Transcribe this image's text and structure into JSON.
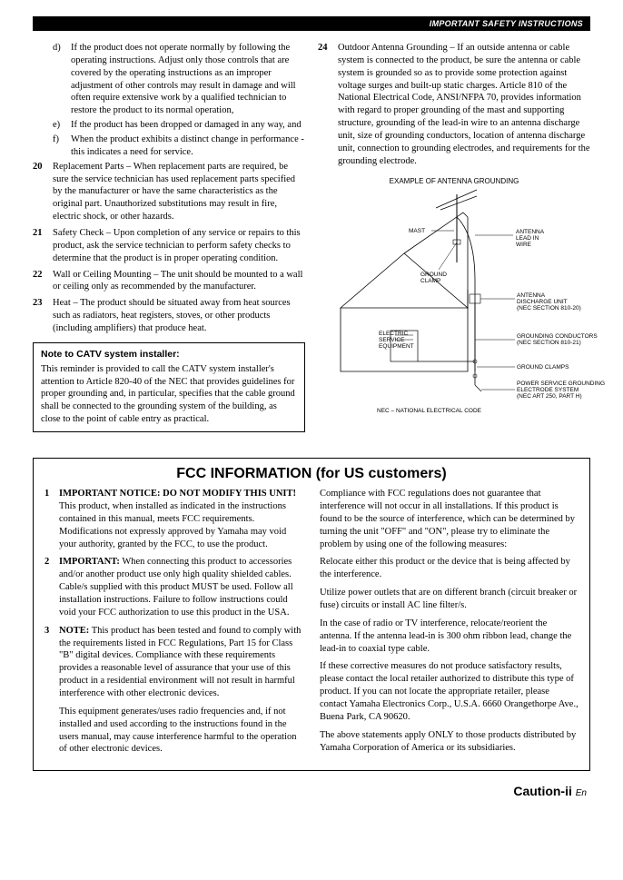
{
  "header": "IMPORTANT SAFETY INSTRUCTIONS",
  "left": {
    "subs": [
      {
        "l": "d)",
        "t": "If the product does not operate normally by following the operating instructions. Adjust only those controls that are covered by the operating instructions as an improper adjustment of other controls may result in damage and will often require extensive work by a qualified technician to restore the product to its normal operation,"
      },
      {
        "l": "e)",
        "t": "If the product has been dropped or damaged in any way, and"
      },
      {
        "l": "f)",
        "t": "When the product exhibits a distinct change in performance - this indicates a need for service."
      }
    ],
    "items": [
      {
        "n": "20",
        "t": "Replacement Parts – When replacement parts are required, be sure the service technician has used replacement parts specified by the manufacturer or have the same characteristics as the original part. Unauthorized substitutions may result in fire, electric shock, or other hazards."
      },
      {
        "n": "21",
        "t": "Safety Check – Upon completion of any service or repairs to this product, ask the service technician to perform safety checks to determine that the product is in proper operating condition."
      },
      {
        "n": "22",
        "t": "Wall or Ceiling Mounting – The unit should be mounted to a wall or ceiling only as recommended by the manufacturer."
      },
      {
        "n": "23",
        "t": "Heat – The product should be situated away from heat sources such as radiators, heat registers, stoves, or other products (including amplifiers) that produce heat."
      }
    ],
    "note": {
      "title": "Note to CATV system installer:",
      "body": "This reminder is provided to call the CATV system installer's attention to Article 820-40 of the NEC that provides guidelines for proper grounding and, in particular, specifies that the cable ground shall be connected to the grounding system of the building, as close to the point of cable entry as practical."
    }
  },
  "right": {
    "item24": "Outdoor Antenna Grounding – If an outside antenna or cable system is connected to the product, be sure the antenna or cable system is grounded so as to provide some protection against voltage surges and built-up static charges. Article 810 of the National Electrical Code, ANSI/NFPA 70, provides information with regard to proper grounding of the mast and supporting structure, grounding of the lead-in wire to an antenna discharge unit, size of grounding conductors, location of antenna discharge unit, connection to grounding electrodes, and requirements for the grounding electrode.",
    "diagram_caption": "EXAMPLE OF ANTENNA GROUNDING",
    "labels": {
      "mast": "MAST",
      "antenna_lead": "ANTENNA LEAD IN WIRE",
      "ground_clamp": "GROUND CLAMP",
      "discharge": "ANTENNA DISCHARGE UNIT (NEC SECTION 810-20)",
      "electric": "ELECTRIC SERVICE EQUIPMENT",
      "conductors": "GROUNDING CONDUCTORS (NEC SECTION 810-21)",
      "clamps": "GROUND CLAMPS",
      "electrode": "POWER SERVICE GROUNDING ELECTRODE SYSTEM (NEC ART 250, PART H)",
      "nec": "NEC – NATIONAL ELECTRICAL CODE"
    }
  },
  "fcc": {
    "title": "FCC INFORMATION (for US customers)",
    "left": [
      {
        "n": "1",
        "lead": "IMPORTANT NOTICE: DO NOT MODIFY THIS UNIT!",
        "body": "This product, when installed as indicated in the instructions contained in this manual, meets FCC requirements. Modifications not expressly approved by Yamaha may void your authority, granted by the FCC, to use the product."
      },
      {
        "n": "2",
        "lead": "IMPORTANT:",
        "body": " When connecting this product to accessories and/or another product use only high quality shielded cables. Cable/s supplied with this product MUST be used. Follow all installation instructions. Failure to follow instructions could void your FCC authorization to use this product in the USA."
      },
      {
        "n": "3",
        "lead": "NOTE:",
        "body": " This product has been tested and found to comply with the requirements listed in FCC Regulations, Part 15 for Class \"B\" digital devices. Compliance with these requirements provides a reasonable level of assurance that your use of this product in a residential environment will not result in harmful interference with other electronic devices.",
        "body2": "This equipment generates/uses radio frequencies and, if not installed and used according to the instructions found in the users manual, may cause interference harmful to the operation of other electronic devices."
      }
    ],
    "right": [
      "Compliance with FCC regulations does not guarantee that interference will not occur in all installations. If this product is found to be the source of interference, which can be determined by turning the unit \"OFF\" and \"ON\", please try to eliminate the problem by using one of the following measures:",
      "Relocate either this product or the device that is being affected by the interference.",
      "Utilize power outlets that are on different branch (circuit breaker or fuse) circuits or install AC line filter/s.",
      "In the case of radio or TV interference, relocate/reorient the antenna. If the antenna lead-in is 300 ohm ribbon lead, change the lead-in to coaxial type cable.",
      "If these corrective measures do not produce satisfactory results, please contact the local retailer authorized to distribute this type of product. If you can not locate the appropriate retailer, please contact Yamaha Electronics Corp., U.S.A. 6660 Orangethorpe Ave., Buena Park, CA 90620.",
      "The above statements apply ONLY to those products distributed by Yamaha Corporation of America or its subsidiaries."
    ]
  },
  "footer": {
    "main": "Caution-ii",
    "en": "En"
  }
}
